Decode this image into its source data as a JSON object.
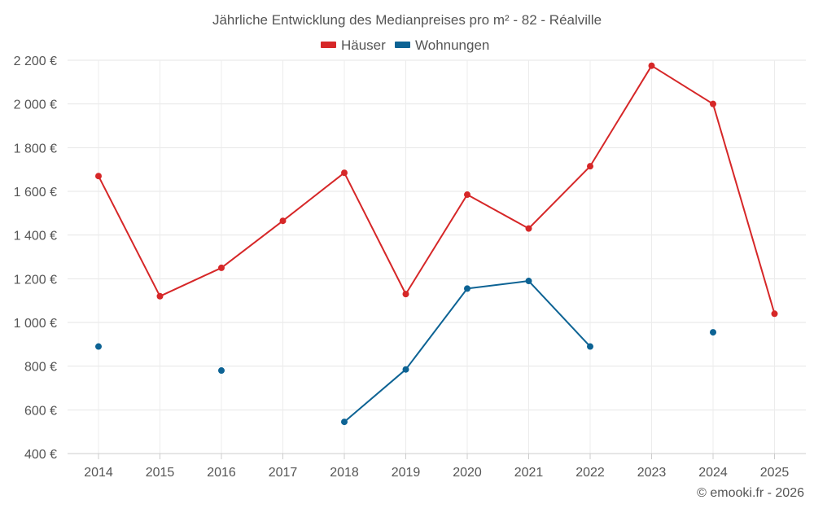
{
  "chart_data": {
    "type": "line",
    "title": "Jährliche Entwicklung des Medianpreises pro m² - 82 - Réalville",
    "xlabel": "",
    "ylabel": "",
    "categories": [
      "2014",
      "2015",
      "2016",
      "2017",
      "2018",
      "2019",
      "2020",
      "2021",
      "2022",
      "2023",
      "2024",
      "2025"
    ],
    "ylim": [
      400,
      2200
    ],
    "yticks": [
      400,
      600,
      800,
      1000,
      1200,
      1400,
      1600,
      1800,
      2000,
      2200
    ],
    "ytick_labels": [
      "400 €",
      "600 €",
      "800 €",
      "1 000 €",
      "1 200 €",
      "1 400 €",
      "1 600 €",
      "1 800 €",
      "2 000 €",
      "2 200 €"
    ],
    "grid": true,
    "legend_position": "top-center",
    "series": [
      {
        "name": "Häuser",
        "color": "#d62728",
        "values": [
          1670,
          1120,
          1250,
          1465,
          1685,
          1130,
          1585,
          1430,
          1715,
          2175,
          2000,
          1040
        ]
      },
      {
        "name": "Wohnungen",
        "color": "#0d6394",
        "values": [
          890,
          null,
          780,
          null,
          545,
          785,
          1155,
          1190,
          890,
          null,
          955,
          null
        ]
      }
    ],
    "credit": "© emooki.fr - 2026"
  }
}
